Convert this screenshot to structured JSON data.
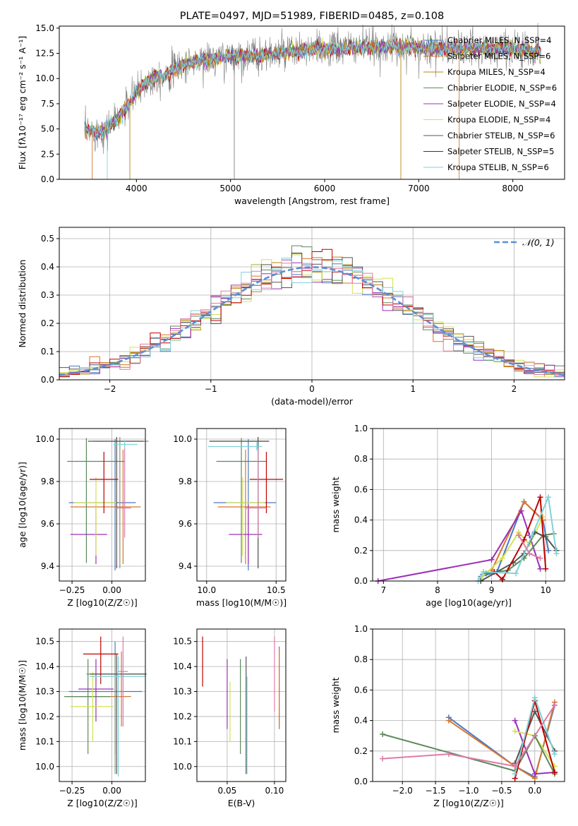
{
  "chart_data": [
    {
      "panel": "spectrum",
      "type": "line",
      "title": "PLATE=0497, MJD=51989, FIBERID=0485, z=0.108",
      "xlabel": "wavelength [Angstrom, rest frame]",
      "ylabel": "Flux [fλ10⁻¹⁷ erg cm⁻² s⁻¹ A⁻¹]",
      "xlim": [
        3180,
        8550
      ],
      "ylim": [
        0,
        15.2
      ],
      "xticks": [
        "4000",
        "5000",
        "6000",
        "7000",
        "8000"
      ],
      "yticks": [
        "0.0",
        "2.5",
        "5.0",
        "7.5",
        "10.0",
        "12.5",
        "15.0"
      ],
      "grid": false,
      "legend_position": "right",
      "continuum": {
        "x": [
          3450,
          3600,
          3700,
          3800,
          3900,
          4000,
          4100,
          4200,
          4300,
          4400,
          4500,
          4700,
          4900,
          5100,
          5300,
          5600,
          6000,
          6400,
          6800,
          7200,
          7600,
          8000,
          8300
        ],
        "y": [
          4.8,
          4.7,
          5.1,
          6.0,
          7.2,
          8.6,
          9.6,
          10.2,
          10.3,
          10.9,
          11.4,
          11.8,
          12.0,
          12.3,
          12.3,
          12.6,
          12.9,
          13.1,
          13.2,
          13.0,
          12.9,
          13.0,
          12.6
        ]
      },
      "series": [
        {
          "name": "Chabrier MILES, N_SSP=4",
          "color": "#4a78c4"
        },
        {
          "name": "Salpeter MILES, N_SSP=6",
          "color": "#d6762f"
        },
        {
          "name": "Kroupa MILES, N_SSP=4",
          "color": "#b8860b"
        },
        {
          "name": "Chabrier ELODIE, N_SSP=6",
          "color": "#5b8a5b"
        },
        {
          "name": "Salpeter ELODIE, N_SSP=4",
          "color": "#9b30b6"
        },
        {
          "name": "Kroupa ELODIE, N_SSP=4",
          "color": "#d4e157"
        },
        {
          "name": "Chabrier STELIB, N_SSP=6",
          "color": "#555555"
        },
        {
          "name": "Salpeter STELIB, N_SSP=5",
          "color": "#c00000"
        },
        {
          "name": "Kroupa STELIB, N_SSP=6",
          "color": "#7fd3d8"
        }
      ]
    },
    {
      "panel": "residuals",
      "type": "histogram",
      "xlabel": "(data-model)/error",
      "ylabel": "Normed distribution",
      "xlim": [
        -2.5,
        2.5
      ],
      "ylim": [
        0,
        0.54
      ],
      "xticks": [
        "−2",
        "−1",
        "0",
        "1",
        "2"
      ],
      "yticks": [
        "0.0",
        "0.1",
        "0.2",
        "0.3",
        "0.4",
        "0.5"
      ],
      "grid": true,
      "legend_position": "top-right",
      "legend_label": "𝒩(0, 1)",
      "bin_width": 0.1,
      "bins_from": -2.5,
      "bins_to": 2.5,
      "reference_curve": "normal(0,1)"
    },
    {
      "panel": "age-vs-Z",
      "type": "errorbar",
      "xlabel": "Z [log10(Z/Z☉)]",
      "ylabel": "age  [log10(age/yr)]",
      "xlim": [
        -0.33,
        0.21
      ],
      "ylim": [
        9.33,
        10.05
      ],
      "xticks": [
        "−0.25",
        "0.00"
      ],
      "yticks": [
        "9.4",
        "9.6",
        "9.8",
        "10.0"
      ],
      "points": [
        {
          "x": 0.02,
          "y": 9.7,
          "xerr": [
            0.29,
            0.13
          ],
          "yerr": [
            0.32,
            0.3
          ],
          "color": "#4a78c4"
        },
        {
          "x": 0.07,
          "y": 9.68,
          "xerr": [
            0.33,
            0.11
          ],
          "yerr": [
            0.27,
            0.27
          ],
          "color": "#d6762f"
        },
        {
          "x": 0.05,
          "y": 9.99,
          "xerr": [
            0.17,
            0.18
          ],
          "yerr": [
            0.6,
            0.02
          ],
          "color": "#8a9a7a"
        },
        {
          "x": -0.16,
          "y": 9.895,
          "xerr": [
            0.12,
            0.24
          ],
          "yerr": [
            0.48,
            0.11
          ],
          "color": "#5b8a5b"
        },
        {
          "x": -0.1,
          "y": 9.55,
          "xerr": [
            0.16,
            0.07
          ],
          "yerr": [
            0.14,
            0.14
          ],
          "color": "#9b30b6"
        },
        {
          "x": -0.1,
          "y": 9.7,
          "xerr": [
            0.14,
            0.13
          ],
          "yerr": [
            0.25,
            0.12
          ],
          "color": "#d4e157"
        },
        {
          "x": 0.03,
          "y": 9.99,
          "xerr": [
            0.18,
            0.17
          ],
          "yerr": [
            0.6,
            0.02
          ],
          "color": "#555555"
        },
        {
          "x": -0.05,
          "y": 9.81,
          "xerr": [
            0.09,
            0.09
          ],
          "yerr": [
            0.16,
            0.13
          ],
          "color": "#c00000"
        },
        {
          "x": 0.08,
          "y": 9.975,
          "xerr": [
            0.07,
            0.08
          ],
          "yerr": [
            0.02,
            0.02
          ],
          "color": "#7fd3d8"
        },
        {
          "x": 0.08,
          "y": 9.675,
          "xerr": [
            0.05,
            0.04
          ],
          "yerr": [
            0.14,
            0.28
          ],
          "color": "#e07aa8"
        }
      ]
    },
    {
      "panel": "age-vs-mass",
      "type": "errorbar",
      "xlabel": "mass [log10(M/M☉)]",
      "ylabel": "",
      "xlim": [
        9.93,
        10.57
      ],
      "ylim": [
        9.33,
        10.05
      ],
      "xticks": [
        "10.0",
        "10.5"
      ],
      "yticks": [
        "9.4",
        "9.6",
        "9.8",
        "10.0"
      ],
      "points": [
        {
          "x": 10.3,
          "y": 9.7,
          "xerr": [
            0.25,
            0.2
          ],
          "yerr": [
            0.32,
            0.3
          ],
          "color": "#4a78c4"
        },
        {
          "x": 10.28,
          "y": 9.68,
          "xerr": [
            0.2,
            0.18
          ],
          "yerr": [
            0.27,
            0.27
          ],
          "color": "#d6762f"
        },
        {
          "x": 10.37,
          "y": 9.99,
          "xerr": [
            0.35,
            0.08
          ],
          "yerr": [
            0.6,
            0.02
          ],
          "color": "#8a9a7a"
        },
        {
          "x": 10.25,
          "y": 9.895,
          "xerr": [
            0.18,
            0.18
          ],
          "yerr": [
            0.48,
            0.11
          ],
          "color": "#5b8a5b"
        },
        {
          "x": 10.3,
          "y": 9.55,
          "xerr": [
            0.14,
            0.1
          ],
          "yerr": [
            0.14,
            0.14
          ],
          "color": "#9b30b6"
        },
        {
          "x": 10.26,
          "y": 9.7,
          "xerr": [
            0.12,
            0.16
          ],
          "yerr": [
            0.25,
            0.12
          ],
          "color": "#d4e157"
        },
        {
          "x": 10.37,
          "y": 9.99,
          "xerr": [
            0.35,
            0.08
          ],
          "yerr": [
            0.6,
            0.02
          ],
          "color": "#555555"
        },
        {
          "x": 10.43,
          "y": 9.81,
          "xerr": [
            0.12,
            0.12
          ],
          "yerr": [
            0.16,
            0.13
          ],
          "color": "#c00000"
        },
        {
          "x": 10.36,
          "y": 9.965,
          "xerr": [
            0.35,
            0.04
          ],
          "yerr": [
            0.02,
            0.02
          ],
          "color": "#7fd3d8"
        },
        {
          "x": 10.37,
          "y": 9.675,
          "xerr": [
            0.09,
            0.06
          ],
          "yerr": [
            0.14,
            0.28
          ],
          "color": "#e07aa8"
        }
      ]
    },
    {
      "panel": "massweight-vs-age",
      "type": "line",
      "xlabel": "age  [log10(age/yr)]",
      "ylabel": "mass weight",
      "xlim": [
        6.8,
        10.35
      ],
      "ylim": [
        0,
        1
      ],
      "xticks": [
        "7",
        "8",
        "9",
        "10"
      ],
      "yticks": [
        "0.0",
        "0.2",
        "0.4",
        "0.6",
        "0.8",
        "1.0"
      ],
      "grid": true,
      "series": [
        {
          "color": "#4a78c4",
          "x": [
            8.8,
            9.1,
            9.6,
            9.95,
            10.05
          ],
          "y": [
            0.03,
            0.06,
            0.52,
            0.4,
            0.2
          ]
        },
        {
          "color": "#d6762f",
          "x": [
            9.0,
            9.6,
            9.95
          ],
          "y": [
            0.07,
            0.52,
            0.4
          ]
        },
        {
          "color": "#9b30b6",
          "x": [
            6.9,
            9.0,
            9.55,
            9.7,
            9.9
          ],
          "y": [
            0.0,
            0.14,
            0.46,
            0.3,
            0.08
          ]
        },
        {
          "color": "#d4e157",
          "x": [
            8.8,
            9.2,
            9.5,
            9.7,
            9.95
          ],
          "y": [
            0.02,
            0.15,
            0.32,
            0.24,
            0.42
          ]
        },
        {
          "color": "#5b8a5b",
          "x": [
            8.9,
            9.3,
            9.6,
            9.95,
            10.15
          ],
          "y": [
            0.05,
            0.07,
            0.15,
            0.3,
            0.31
          ]
        },
        {
          "color": "#555555",
          "x": [
            8.8,
            9.4,
            9.6,
            9.8,
            10.0,
            10.2
          ],
          "y": [
            0.0,
            0.12,
            0.18,
            0.32,
            0.29,
            0.2
          ]
        },
        {
          "color": "#c00000",
          "x": [
            9.05,
            9.2,
            9.6,
            9.9,
            10.0
          ],
          "y": [
            0.06,
            0.01,
            0.27,
            0.55,
            0.08
          ]
        },
        {
          "color": "#7fd3d8",
          "x": [
            8.75,
            8.85,
            9.45,
            9.75,
            10.05,
            10.2
          ],
          "y": [
            0.0,
            0.06,
            0.05,
            0.3,
            0.55,
            0.18
          ]
        },
        {
          "color": "#e07aa8",
          "x": [
            9.5,
            9.7,
            9.9
          ],
          "y": [
            0.3,
            0.18,
            0.15
          ]
        }
      ]
    },
    {
      "panel": "mass-vs-Z",
      "type": "errorbar",
      "xlabel": "Z [log10(Z/Z☉)]",
      "ylabel": "mass [log10(M/M☉)]",
      "xlim": [
        -0.33,
        0.21
      ],
      "ylim": [
        9.94,
        10.55
      ],
      "xticks": [
        "−0.25",
        "0.00"
      ],
      "yticks": [
        "10.0",
        "10.1",
        "10.2",
        "10.3",
        "10.4",
        "10.5"
      ],
      "points": [
        {
          "x": 0.02,
          "y": 10.3,
          "xerr": [
            0.29,
            0.17
          ],
          "yerr": [
            0.25,
            0.2
          ],
          "color": "#4a78c4"
        },
        {
          "x": 0.06,
          "y": 10.28,
          "xerr": [
            0.35,
            0.06
          ],
          "yerr": [
            0.12,
            0.18
          ],
          "color": "#d6762f"
        },
        {
          "x": 0.02,
          "y": 10.37,
          "xerr": [
            0.18,
            0.2
          ],
          "yerr": [
            0.4,
            0.08
          ],
          "color": "#8a9a7a"
        },
        {
          "x": -0.15,
          "y": 10.28,
          "xerr": [
            0.15,
            0.14
          ],
          "yerr": [
            0.23,
            0.15
          ],
          "color": "#5b8a5b"
        },
        {
          "x": -0.1,
          "y": 10.31,
          "xerr": [
            0.11,
            0.11
          ],
          "yerr": [
            0.13,
            0.12
          ],
          "color": "#9b30b6"
        },
        {
          "x": -0.12,
          "y": 10.24,
          "xerr": [
            0.14,
            0.13
          ],
          "yerr": [
            0.14,
            0.14
          ],
          "color": "#d4e157"
        },
        {
          "x": 0.03,
          "y": 10.37,
          "xerr": [
            0.17,
            0.18
          ],
          "yerr": [
            0.4,
            0.08
          ],
          "color": "#555555"
        },
        {
          "x": -0.07,
          "y": 10.45,
          "xerr": [
            0.11,
            0.11
          ],
          "yerr": [
            0.12,
            0.07
          ],
          "color": "#c00000"
        },
        {
          "x": 0.04,
          "y": 10.36,
          "xerr": [
            0.18,
            0.17
          ],
          "yerr": [
            0.4,
            0.08
          ],
          "color": "#7fd3d8"
        },
        {
          "x": 0.07,
          "y": 10.38,
          "xerr": [
            0.03,
            0.03
          ],
          "yerr": [
            0.22,
            0.14
          ],
          "color": "#e07aa8"
        }
      ]
    },
    {
      "panel": "mass-vs-EBV",
      "type": "errorbar",
      "xlabel": "E(B-V)",
      "ylabel": "",
      "xlim": [
        0.018,
        0.112
      ],
      "ylim": [
        9.94,
        10.55
      ],
      "xticks": [
        "0.05",
        "0.10"
      ],
      "yticks": [
        "10.0",
        "10.1",
        "10.2",
        "10.3",
        "10.4",
        "10.5"
      ],
      "points": [
        {
          "x": 0.105,
          "y": 10.3,
          "xerr": [
            0,
            0
          ],
          "yerr": [
            0.15,
            0.18
          ],
          "color": "#4a78c4"
        },
        {
          "x": 0.105,
          "y": 10.31,
          "xerr": [
            0,
            0
          ],
          "yerr": [
            0.16,
            0.16
          ],
          "color": "#d6762f"
        },
        {
          "x": 0.024,
          "y": 10.42,
          "xerr": [
            0,
            0
          ],
          "yerr": [
            0.1,
            0.1
          ],
          "color": "#c00000"
        },
        {
          "x": 0.05,
          "y": 10.28,
          "xerr": [
            0,
            0
          ],
          "yerr": [
            0.13,
            0.15
          ],
          "color": "#9b30b6"
        },
        {
          "x": 0.053,
          "y": 10.22,
          "xerr": [
            0,
            0
          ],
          "yerr": [
            0.12,
            0.12
          ],
          "color": "#d4e157"
        },
        {
          "x": 0.064,
          "y": 10.24,
          "xerr": [
            0,
            0
          ],
          "yerr": [
            0.19,
            0.19
          ],
          "color": "#5b8a5b"
        },
        {
          "x": 0.07,
          "y": 10.23,
          "xerr": [
            0,
            0
          ],
          "yerr": [
            0.26,
            0.21
          ],
          "color": "#555555"
        },
        {
          "x": 0.071,
          "y": 10.2,
          "xerr": [
            0,
            0
          ],
          "yerr": [
            0.23,
            0.16
          ],
          "color": "#7fd3d8"
        },
        {
          "x": 0.1,
          "y": 10.37,
          "xerr": [
            0,
            0
          ],
          "yerr": [
            0.15,
            0.15
          ],
          "color": "#e07aa8"
        }
      ]
    },
    {
      "panel": "massweight-vs-Z",
      "type": "line",
      "xlabel": "Z [log10(Z/Z☉)]",
      "ylabel": "mass weight",
      "xlim": [
        -2.45,
        0.45
      ],
      "ylim": [
        0,
        1
      ],
      "xticks": [
        "−2.0",
        "−1.5",
        "−1.0",
        "−0.5",
        "0.0"
      ],
      "yticks": [
        "0.0",
        "0.2",
        "0.4",
        "0.6",
        "0.8",
        "1.0"
      ],
      "grid": true,
      "series": [
        {
          "color": "#4a78c4",
          "x": [
            -1.3,
            -0.3,
            0.0,
            0.3
          ],
          "y": [
            0.42,
            0.1,
            0.03,
            0.5
          ]
        },
        {
          "color": "#d6762f",
          "x": [
            -1.3,
            -0.3,
            0.0,
            0.3
          ],
          "y": [
            0.4,
            0.1,
            0.02,
            0.52
          ]
        },
        {
          "color": "#9b30b6",
          "x": [
            -0.3,
            0.0,
            0.3
          ],
          "y": [
            0.4,
            0.05,
            0.06
          ]
        },
        {
          "color": "#d4e157",
          "x": [
            -0.3,
            0.0,
            0.3
          ],
          "y": [
            0.33,
            0.3,
            0.1
          ]
        },
        {
          "color": "#5b8a5b",
          "x": [
            -2.3,
            -0.3,
            0.0,
            0.3
          ],
          "y": [
            0.31,
            0.07,
            0.3,
            0.05
          ]
        },
        {
          "color": "#555555",
          "x": [
            -0.3,
            0.0,
            0.3
          ],
          "y": [
            0.12,
            0.46,
            0.2
          ]
        },
        {
          "color": "#c00000",
          "x": [
            -0.3,
            0.0,
            0.3
          ],
          "y": [
            0.02,
            0.53,
            0.06
          ]
        },
        {
          "color": "#7fd3d8",
          "x": [
            -0.3,
            0.0,
            0.3
          ],
          "y": [
            0.05,
            0.55,
            0.18
          ]
        },
        {
          "color": "#e07aa8",
          "x": [
            -2.3,
            -1.3,
            -0.3,
            0.3
          ],
          "y": [
            0.15,
            0.18,
            0.1,
            0.5
          ]
        }
      ]
    }
  ]
}
